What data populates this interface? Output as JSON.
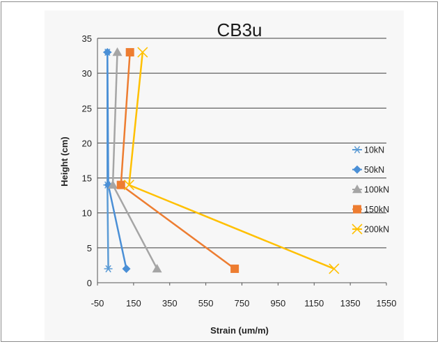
{
  "chart_data": {
    "type": "line",
    "title": "CB3u",
    "xlabel": "Strain (um/m)",
    "ylabel": "Height (cm)",
    "xlim": [
      -50,
      1550
    ],
    "ylim": [
      0,
      35
    ],
    "x_ticks": [
      "-50",
      "150",
      "350",
      "550",
      "750",
      "950",
      "1150",
      "1350",
      "1550"
    ],
    "y_ticks": [
      "0",
      "5",
      "10",
      "15",
      "20",
      "25",
      "30",
      "35"
    ],
    "grid": "horizontal",
    "legend_position": "right",
    "series": [
      {
        "name": "10kN",
        "color": "#5b9bd5",
        "marker": "asterisk",
        "points": [
          [
            10,
            2
          ],
          [
            5,
            14
          ],
          [
            5,
            33
          ]
        ]
      },
      {
        "name": "50kN",
        "color": "#4a8fd6",
        "marker": "diamond",
        "points": [
          [
            110,
            2
          ],
          [
            10,
            14
          ],
          [
            5,
            33
          ]
        ]
      },
      {
        "name": "100kN",
        "color": "#a5a5a5",
        "marker": "triangle",
        "points": [
          [
            280,
            2
          ],
          [
            35,
            14
          ],
          [
            60,
            33
          ]
        ]
      },
      {
        "name": "150kN",
        "color": "#ed7d31",
        "marker": "square",
        "points": [
          [
            710,
            2
          ],
          [
            80,
            14
          ],
          [
            130,
            33
          ]
        ]
      },
      {
        "name": "200kN",
        "color": "#ffc000",
        "marker": "x",
        "points": [
          [
            1260,
            2
          ],
          [
            125,
            14
          ],
          [
            200,
            33
          ]
        ]
      }
    ]
  }
}
